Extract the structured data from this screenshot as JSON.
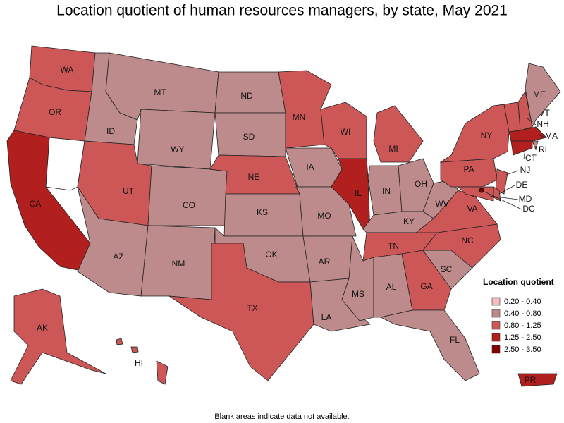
{
  "title": "Location quotient of human resources managers, by state, May 2021",
  "legend": {
    "title": "Location quotient",
    "items": [
      {
        "label": "0.20 - 0.40",
        "color": "#f4bcbc"
      },
      {
        "label": "0.40 - 0.80",
        "color": "#bd8b8b"
      },
      {
        "label": "0.80 - 1.25",
        "color": "#cd5757"
      },
      {
        "label": "1.25 - 2.50",
        "color": "#b11f1f"
      },
      {
        "label": "2.50 - 3.50",
        "color": "#870000"
      }
    ]
  },
  "states": [
    {
      "label": "WA",
      "color": "#cd5757"
    },
    {
      "label": "OR",
      "color": "#cd5757"
    },
    {
      "label": "CA",
      "color": "#b11f1f"
    },
    {
      "label": "ID",
      "color": "#bd8b8b"
    },
    {
      "label": "MT",
      "color": "#bd8b8b"
    },
    {
      "label": "WY",
      "color": "#bd8b8b"
    },
    {
      "label": "UT",
      "color": "#cd5757"
    },
    {
      "label": "CO",
      "color": "#bd8b8b"
    },
    {
      "label": "AZ",
      "color": "#bd8b8b"
    },
    {
      "label": "NM",
      "color": "#bd8b8b"
    },
    {
      "label": "ND",
      "color": "#bd8b8b"
    },
    {
      "label": "SD",
      "color": "#bd8b8b"
    },
    {
      "label": "NE",
      "color": "#cd5757"
    },
    {
      "label": "KS",
      "color": "#bd8b8b"
    },
    {
      "label": "OK",
      "color": "#bd8b8b"
    },
    {
      "label": "TX",
      "color": "#cd5757"
    },
    {
      "label": "MN",
      "color": "#cd5757"
    },
    {
      "label": "IA",
      "color": "#bd8b8b"
    },
    {
      "label": "MO",
      "color": "#bd8b8b"
    },
    {
      "label": "AR",
      "color": "#bd8b8b"
    },
    {
      "label": "LA",
      "color": "#bd8b8b"
    },
    {
      "label": "WI",
      "color": "#cd5757"
    },
    {
      "label": "IL",
      "color": "#b11f1f"
    },
    {
      "label": "MI",
      "color": "#cd5757"
    },
    {
      "label": "IN",
      "color": "#bd8b8b"
    },
    {
      "label": "OH",
      "color": "#bd8b8b"
    },
    {
      "label": "KY",
      "color": "#bd8b8b"
    },
    {
      "label": "TN",
      "color": "#cd5757"
    },
    {
      "label": "MS",
      "color": "#bd8b8b"
    },
    {
      "label": "AL",
      "color": "#bd8b8b"
    },
    {
      "label": "GA",
      "color": "#cd5757"
    },
    {
      "label": "FL",
      "color": "#bd8b8b"
    },
    {
      "label": "SC",
      "color": "#bd8b8b"
    },
    {
      "label": "NC",
      "color": "#cd5757"
    },
    {
      "label": "VA",
      "color": "#cd5757"
    },
    {
      "label": "WV",
      "color": "#bd8b8b"
    },
    {
      "label": "PA",
      "color": "#cd5757"
    },
    {
      "label": "NY",
      "color": "#cd5757"
    },
    {
      "label": "VT",
      "color": "#cd5757"
    },
    {
      "label": "NH",
      "color": "#cd5757"
    },
    {
      "label": "ME",
      "color": "#bd8b8b"
    },
    {
      "label": "MA",
      "color": "#b11f1f"
    },
    {
      "label": "RI",
      "color": "#bd8b8b"
    },
    {
      "label": "CT",
      "color": "#b11f1f"
    },
    {
      "label": "NJ",
      "color": "#cd5757"
    },
    {
      "label": "DE",
      "color": "#cd5757"
    },
    {
      "label": "MD",
      "color": "#cd5757"
    },
    {
      "label": "DC",
      "color": "#870000"
    },
    {
      "label": "AK",
      "color": "#cd5757"
    },
    {
      "label": "HI",
      "color": "#cd5757"
    },
    {
      "label": "PR",
      "color": "#b11f1f"
    }
  ],
  "footnote": "Blank areas indicate data not available."
}
